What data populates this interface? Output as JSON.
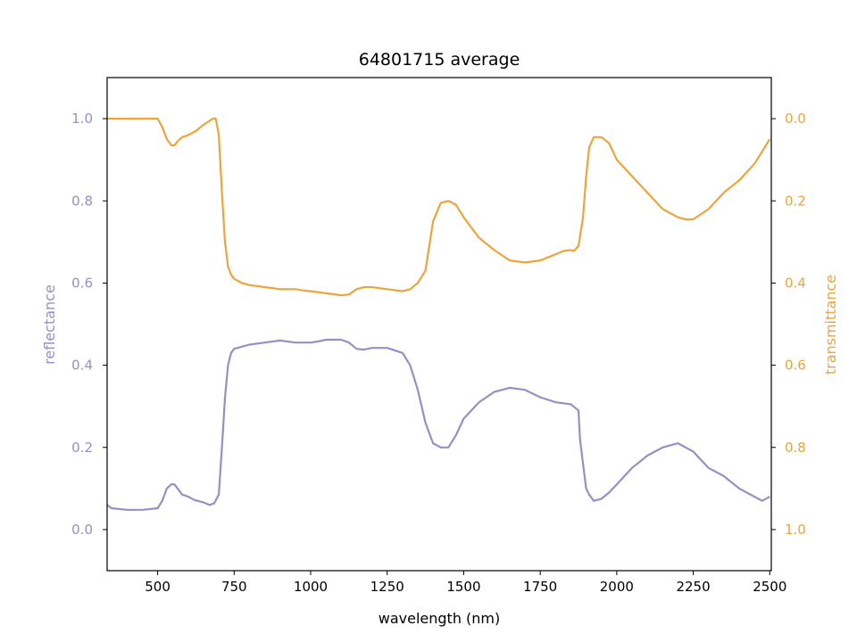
{
  "chart_data": {
    "type": "line",
    "title": "64801715 average",
    "xlabel": "wavelength (nm)",
    "ylabel_left": "reflectance",
    "ylabel_right": "transmittance",
    "xlim": [
      335,
      2505
    ],
    "ylim_left": [
      -0.1,
      1.1
    ],
    "ylim_right": [
      1.1,
      -0.1
    ],
    "right_axis_inverted": true,
    "grid": false,
    "x_ticks": [
      500,
      750,
      1000,
      1250,
      1500,
      1750,
      2000,
      2250,
      2500
    ],
    "y_ticks_left": [
      0.0,
      0.2,
      0.4,
      0.6,
      0.8,
      1.0
    ],
    "y_ticks_right": [
      0.0,
      0.2,
      0.4,
      0.6,
      0.8,
      1.0
    ],
    "colors": {
      "reflectance": "#9590c4",
      "transmittance": "#eda43d"
    },
    "series": [
      {
        "key": "reflectance",
        "axis": "left",
        "x": [
          335,
          350,
          375,
          400,
          450,
          500,
          515,
          530,
          545,
          555,
          565,
          580,
          600,
          620,
          650,
          670,
          685,
          700,
          710,
          720,
          730,
          740,
          750,
          775,
          800,
          850,
          900,
          950,
          975,
          1000,
          1025,
          1050,
          1100,
          1125,
          1150,
          1175,
          1200,
          1250,
          1300,
          1325,
          1350,
          1375,
          1400,
          1425,
          1450,
          1475,
          1500,
          1550,
          1600,
          1650,
          1700,
          1750,
          1800,
          1850,
          1875,
          1880,
          1890,
          1900,
          1910,
          1925,
          1950,
          1975,
          2000,
          2050,
          2100,
          2150,
          2200,
          2225,
          2250,
          2275,
          2300,
          2350,
          2400,
          2450,
          2475,
          2500
        ],
        "y": [
          0.06,
          0.052,
          0.05,
          0.048,
          0.048,
          0.052,
          0.07,
          0.1,
          0.11,
          0.11,
          0.1,
          0.085,
          0.08,
          0.072,
          0.066,
          0.06,
          0.064,
          0.085,
          0.2,
          0.32,
          0.4,
          0.43,
          0.44,
          0.445,
          0.45,
          0.455,
          0.46,
          0.455,
          0.455,
          0.455,
          0.458,
          0.462,
          0.462,
          0.455,
          0.44,
          0.438,
          0.442,
          0.442,
          0.43,
          0.4,
          0.34,
          0.26,
          0.21,
          0.2,
          0.2,
          0.23,
          0.27,
          0.31,
          0.335,
          0.345,
          0.34,
          0.322,
          0.31,
          0.305,
          0.29,
          0.22,
          0.16,
          0.1,
          0.085,
          0.07,
          0.075,
          0.09,
          0.11,
          0.15,
          0.18,
          0.2,
          0.21,
          0.2,
          0.19,
          0.17,
          0.15,
          0.13,
          0.1,
          0.08,
          0.07,
          0.08
        ]
      },
      {
        "key": "transmittance",
        "axis": "right",
        "x": [
          335,
          350,
          375,
          400,
          450,
          500,
          515,
          530,
          545,
          555,
          565,
          580,
          600,
          625,
          650,
          670,
          680,
          690,
          700,
          710,
          720,
          730,
          740,
          750,
          775,
          800,
          850,
          900,
          950,
          975,
          1000,
          1050,
          1100,
          1125,
          1150,
          1175,
          1200,
          1250,
          1300,
          1325,
          1350,
          1375,
          1400,
          1425,
          1450,
          1475,
          1500,
          1550,
          1600,
          1650,
          1700,
          1750,
          1800,
          1825,
          1850,
          1860,
          1875,
          1890,
          1900,
          1910,
          1925,
          1950,
          1975,
          2000,
          2050,
          2100,
          2150,
          2200,
          2225,
          2250,
          2300,
          2350,
          2400,
          2450,
          2475,
          2500
        ],
        "y": [
          0.0,
          0.0,
          0.0,
          0.0,
          0.0,
          0.0,
          0.02,
          0.05,
          0.065,
          0.065,
          0.055,
          0.045,
          0.04,
          0.03,
          0.015,
          0.005,
          0.0,
          0.0,
          0.04,
          0.18,
          0.3,
          0.36,
          0.38,
          0.39,
          0.4,
          0.405,
          0.41,
          0.415,
          0.415,
          0.418,
          0.42,
          0.425,
          0.43,
          0.428,
          0.415,
          0.41,
          0.41,
          0.415,
          0.42,
          0.415,
          0.4,
          0.37,
          0.25,
          0.205,
          0.2,
          0.21,
          0.24,
          0.29,
          0.32,
          0.345,
          0.35,
          0.345,
          0.33,
          0.322,
          0.32,
          0.322,
          0.31,
          0.24,
          0.14,
          0.07,
          0.045,
          0.045,
          0.06,
          0.1,
          0.14,
          0.18,
          0.22,
          0.24,
          0.245,
          0.245,
          0.22,
          0.18,
          0.15,
          0.11,
          0.08,
          0.05
        ]
      }
    ]
  }
}
